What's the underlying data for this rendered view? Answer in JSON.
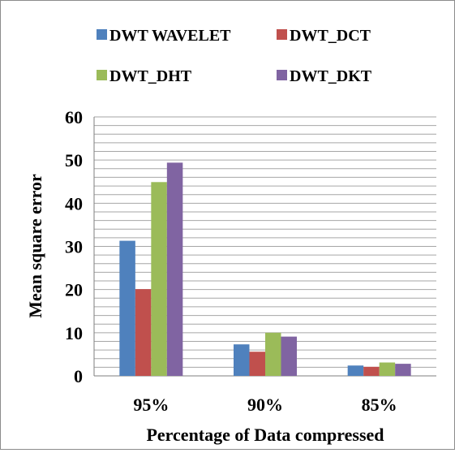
{
  "chart_data": {
    "type": "bar",
    "title": "",
    "xlabel": "Percentage of Data compressed",
    "ylabel": "Mean square error",
    "ylim": [
      0,
      60
    ],
    "y_major_ticks": [
      0,
      10,
      20,
      30,
      40,
      50,
      60
    ],
    "y_gridline_step": 2,
    "grid": true,
    "legend_position": "top",
    "categories": [
      "95%",
      "90%",
      "85%"
    ],
    "series": [
      {
        "name": "DWT WAVELET",
        "color": "#4f81bd",
        "values": [
          31.3,
          7.3,
          2.4
        ]
      },
      {
        "name": "DWT_DCT",
        "color": "#c0504d",
        "values": [
          20.1,
          5.6,
          2.1
        ]
      },
      {
        "name": "DWT_DHT",
        "color": "#9bbb59",
        "values": [
          44.9,
          10.0,
          3.1
        ]
      },
      {
        "name": "DWT_DKT",
        "color": "#8064a2",
        "values": [
          49.4,
          9.1,
          2.8
        ]
      }
    ]
  }
}
